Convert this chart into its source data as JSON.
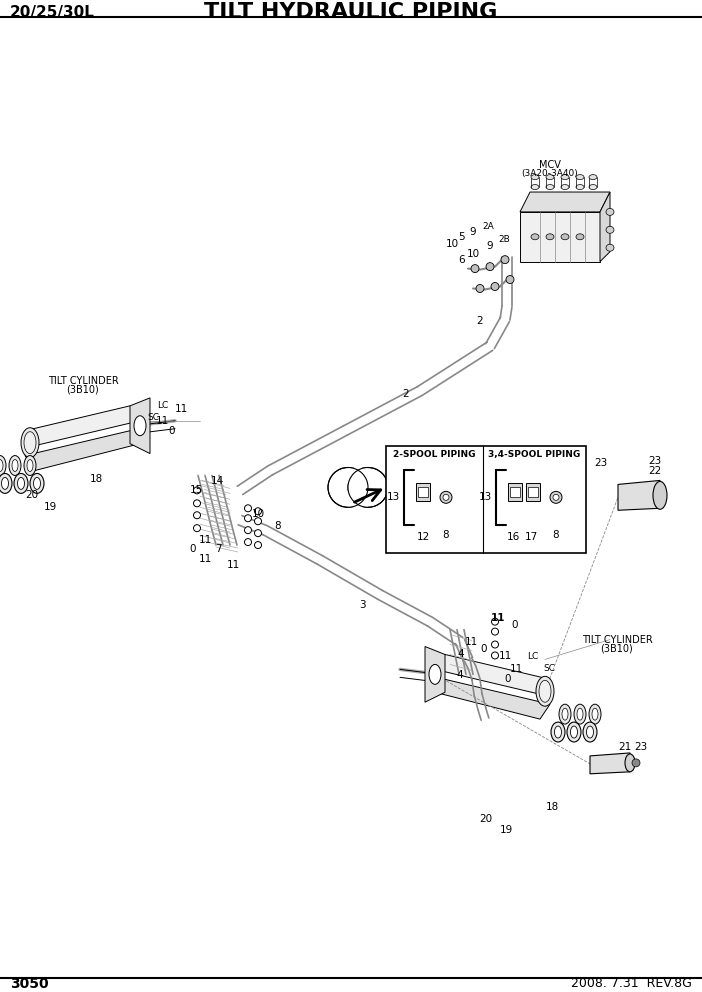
{
  "title": "TILT HYDRAULIC PIPING",
  "subtitle_left": "20/25/30L",
  "page_number": "3050",
  "revision": "2008. 7.31  REV.8G",
  "bg": "#ffffff",
  "lc": "#000000",
  "gray": "#aaaaaa",
  "light_gray": "#cccccc",
  "title_fontsize": 16,
  "lfs": 7.5,
  "sfs": 7.0,
  "tfs": 6.5
}
